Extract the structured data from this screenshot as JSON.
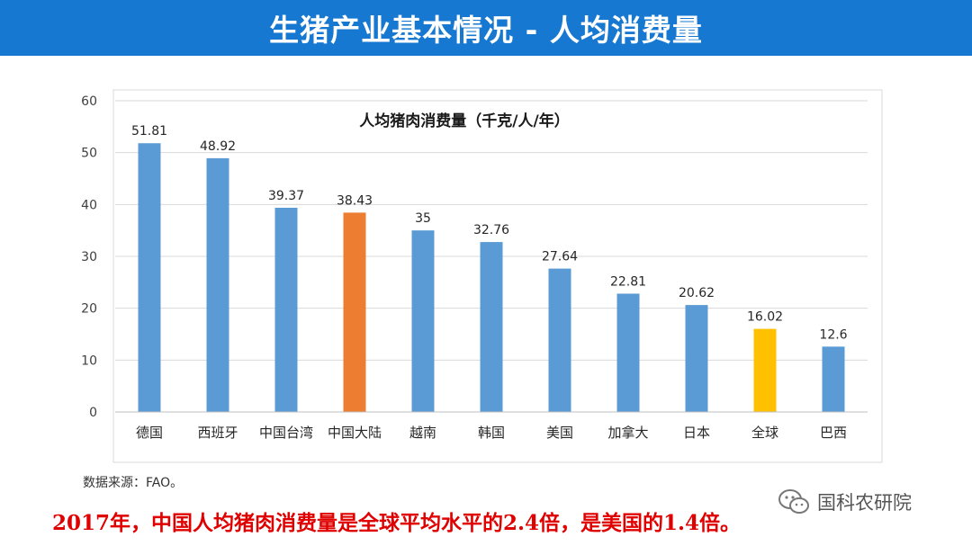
{
  "header": {
    "title": "生猪产业基本情况 - 人均消费量"
  },
  "chart_data": {
    "type": "bar",
    "title": "人均猪肉消费量（千克/人/年）",
    "xlabel": "",
    "ylabel": "",
    "ylim": [
      0,
      60
    ],
    "yticks": [
      0,
      10,
      20,
      30,
      40,
      50,
      60
    ],
    "grid": true,
    "legend": "none",
    "categories": [
      "德国",
      "西班牙",
      "中国台湾",
      "中国大陆",
      "越南",
      "韩国",
      "美国",
      "加拿大",
      "日本",
      "全球",
      "巴西"
    ],
    "values": [
      51.81,
      48.92,
      39.37,
      38.43,
      35,
      32.76,
      27.64,
      22.81,
      20.62,
      16.02,
      12.6
    ],
    "data_labels": [
      "51.81",
      "48.92",
      "39.37",
      "38.43",
      "35",
      "32.76",
      "27.64",
      "22.81",
      "20.62",
      "16.02",
      "12.6"
    ],
    "colors": [
      "#5b9bd5",
      "#5b9bd5",
      "#5b9bd5",
      "#ed7d31",
      "#5b9bd5",
      "#5b9bd5",
      "#5b9bd5",
      "#5b9bd5",
      "#5b9bd5",
      "#ffc000",
      "#5b9bd5"
    ]
  },
  "footer": {
    "source": "数据来源：FAO。",
    "conclusion": "2017年，中国人均猪肉消费量是全球平均水平的2.4倍，是美国的1.4倍。"
  },
  "watermark": {
    "text": "国科农研院",
    "icon": "wechat-icon"
  }
}
